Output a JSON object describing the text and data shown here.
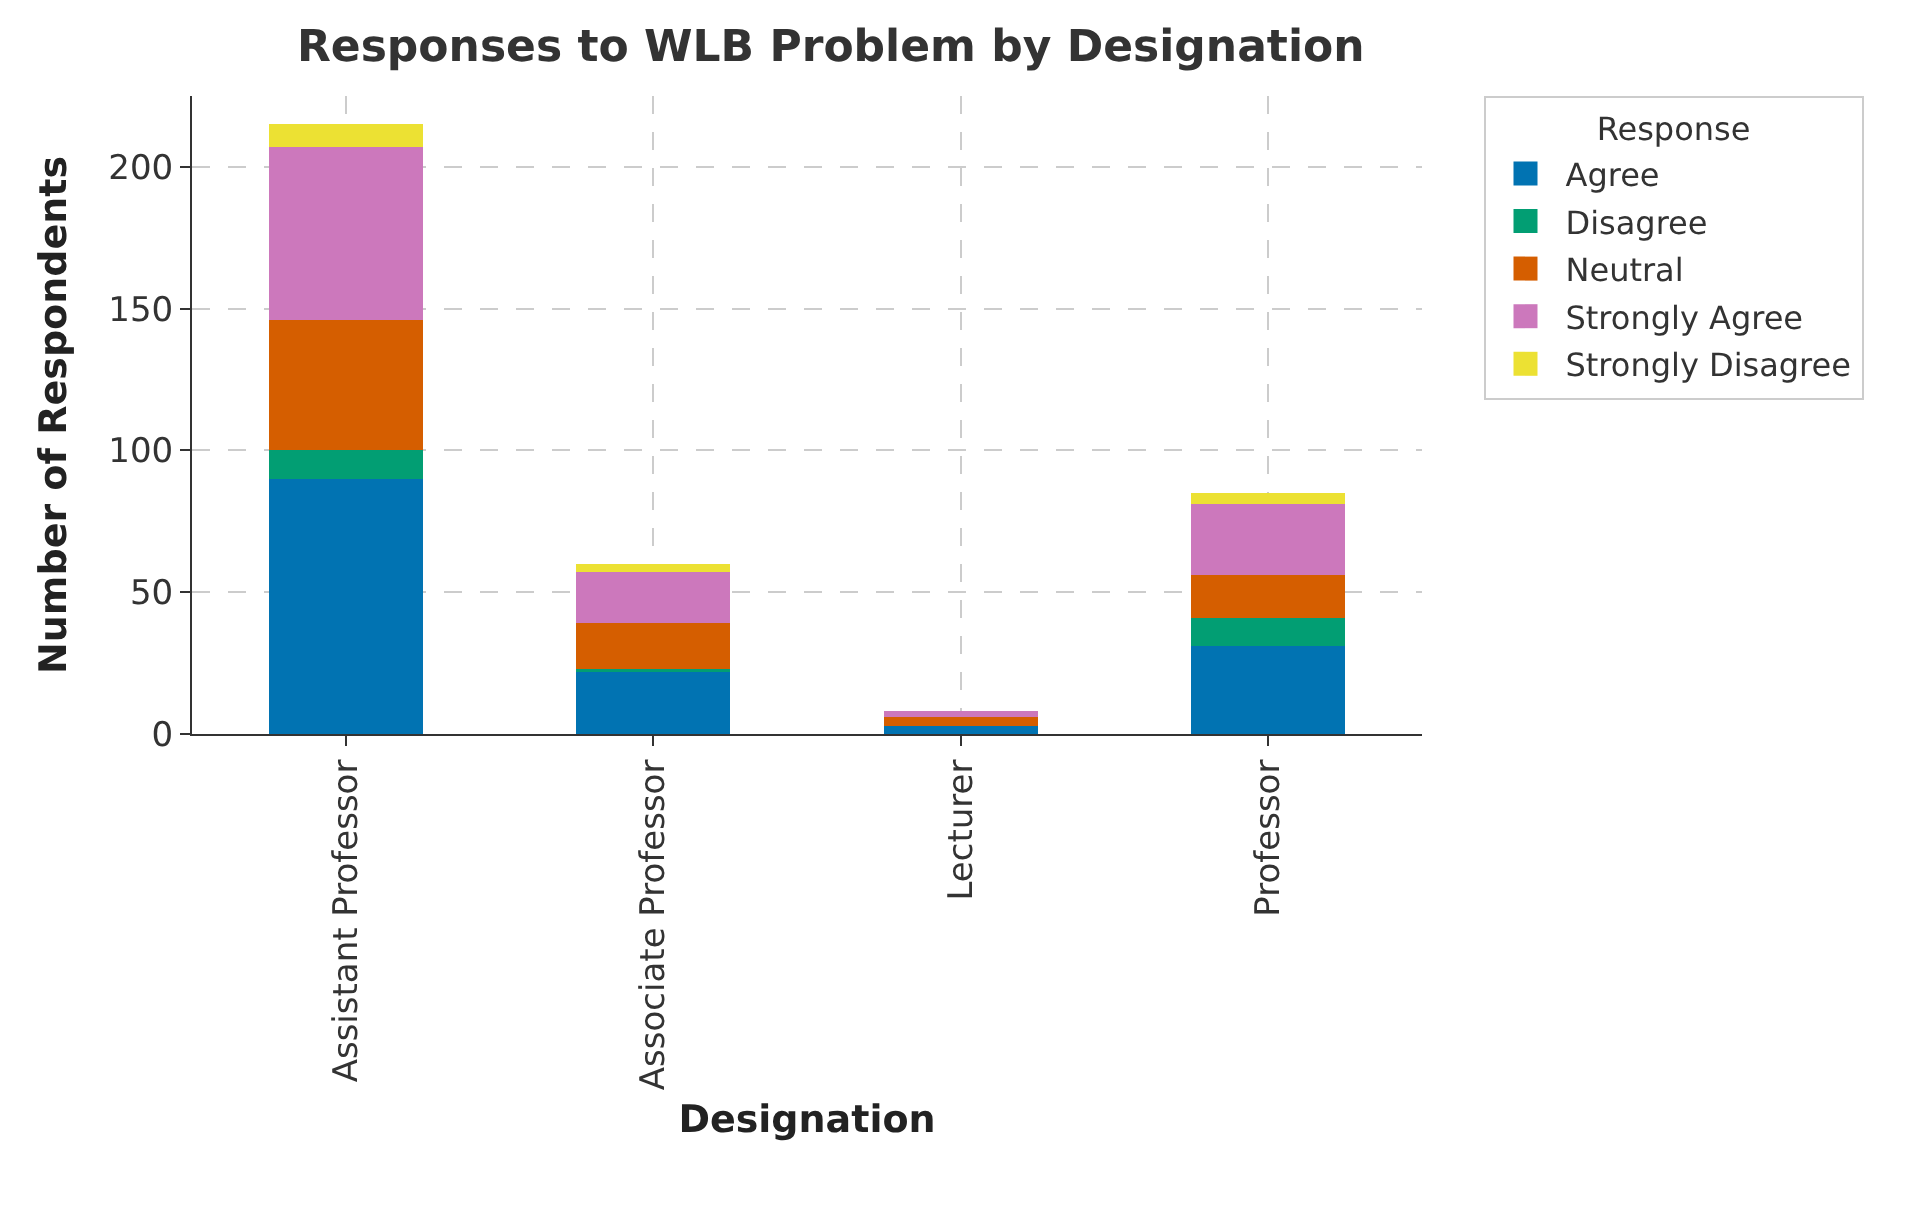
{
  "chart_data": {
    "type": "bar",
    "stacked": true,
    "title": "Responses to WLB Problem by Designation",
    "xlabel": "Designation",
    "ylabel": "Number of Respondents",
    "legend_title": "Response",
    "categories": [
      "Assistant Professor",
      "Associate Professor",
      "Lecturer",
      "Professor"
    ],
    "series": [
      {
        "name": "Agree",
        "color": "#0173b2",
        "values": [
          90,
          22,
          3,
          31
        ]
      },
      {
        "name": "Disagree",
        "color": "#029e73",
        "values": [
          10,
          1,
          0,
          10
        ]
      },
      {
        "name": "Neutral",
        "color": "#d55e00",
        "values": [
          46,
          16,
          3,
          15
        ]
      },
      {
        "name": "Strongly Agree",
        "color": "#cc78bc",
        "values": [
          61,
          18,
          2,
          25
        ]
      },
      {
        "name": "Strongly Disagree",
        "color": "#ece133",
        "values": [
          8,
          3,
          0,
          4
        ]
      }
    ],
    "ylim": [
      0,
      225
    ],
    "yticks": [
      0,
      50,
      100,
      150,
      200
    ],
    "grid": true,
    "legend": "top right"
  }
}
